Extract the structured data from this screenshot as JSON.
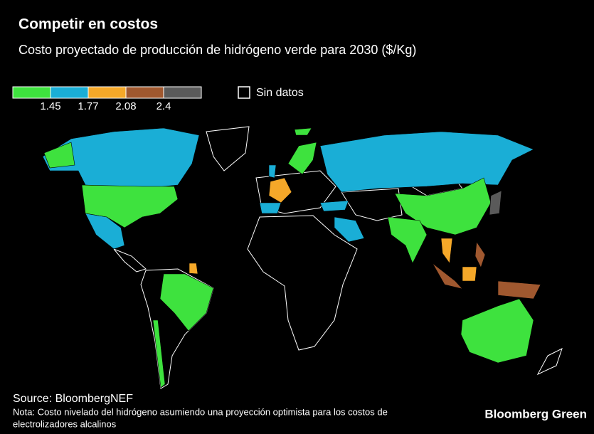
{
  "header": {
    "title": "Competir en costos",
    "subtitle": "Costo proyectado de producción de hidrógeno verde para 2030 ($/Kg)"
  },
  "legend": {
    "colors": [
      "#3ee23e",
      "#1aaed6",
      "#f5a829",
      "#a0582f",
      "#5a5a5a"
    ],
    "breaks": [
      1.45,
      1.77,
      2.08,
      2.4
    ],
    "no_data_label": "Sin datos"
  },
  "footer": {
    "source": "Source: BloombergNEF",
    "note_lines": [
      "Nota: Costo nivelado del hidrógeno asumiendo una proyección optimista para los costos de",
      "electrolizadores alcalinos"
    ],
    "brand": "Bloomberg Green"
  }
}
